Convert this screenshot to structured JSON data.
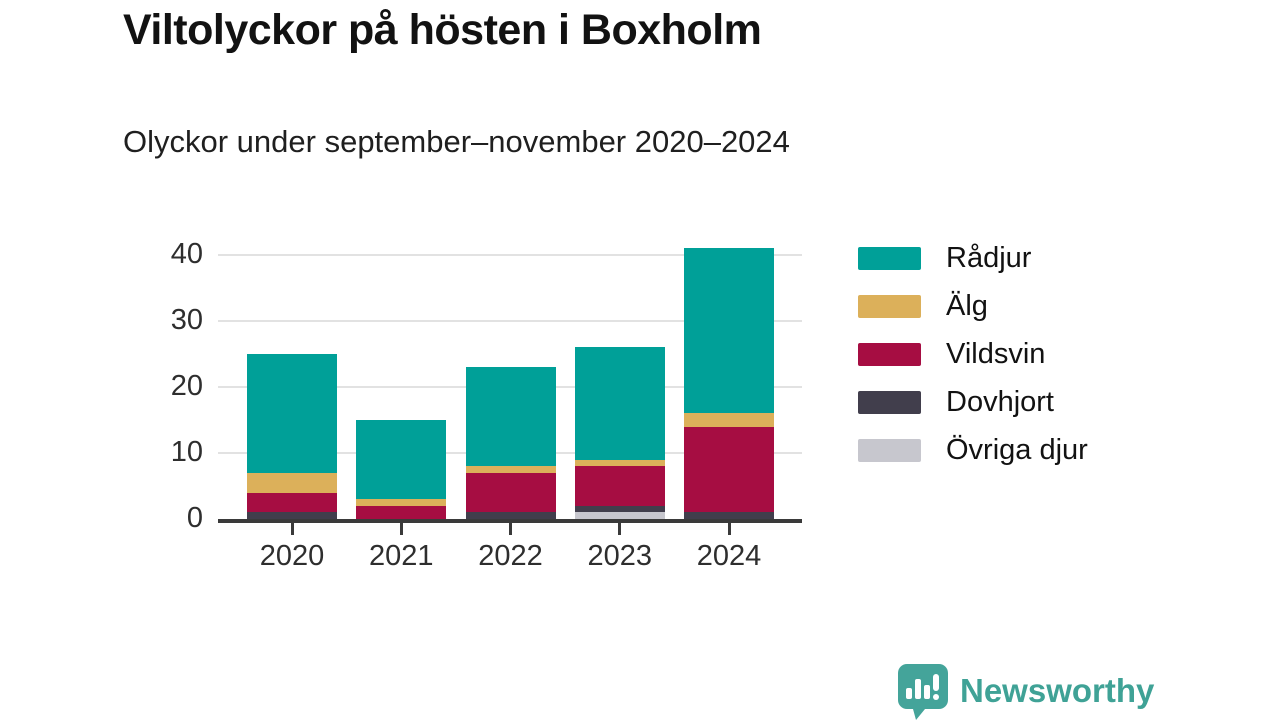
{
  "title": "Viltolyckor på hösten i Boxholm",
  "subtitle": "Olyckor under september–november 2020–2024",
  "chart_data": {
    "type": "bar",
    "stacked": true,
    "title": "Viltolyckor på hösten i Boxholm",
    "subtitle": "Olyckor under september–november 2020–2024",
    "categories": [
      "2020",
      "2021",
      "2022",
      "2023",
      "2024"
    ],
    "series": [
      {
        "name": "Rådjur",
        "color": "#00a098",
        "values": [
          18,
          12,
          15,
          17,
          25
        ]
      },
      {
        "name": "Älg",
        "color": "#dcb05a",
        "values": [
          3,
          1,
          1,
          1,
          2
        ]
      },
      {
        "name": "Vildsvin",
        "color": "#a60d42",
        "values": [
          3,
          2,
          6,
          6,
          13
        ]
      },
      {
        "name": "Dovhjort",
        "color": "#413e4c",
        "values": [
          1,
          0,
          1,
          1,
          1
        ]
      },
      {
        "name": "Övriga djur",
        "color": "#c7c7ce",
        "values": [
          0,
          0,
          0,
          1,
          0
        ]
      }
    ],
    "totals": [
      25,
      15,
      23,
      26,
      41
    ],
    "y_ticks": [
      0,
      10,
      20,
      30,
      40
    ],
    "ylim": [
      0,
      40
    ],
    "xlabel": "",
    "ylabel": "",
    "grid": true,
    "legend_position": "right",
    "stack_order_bottom_to_top": [
      "Övriga djur",
      "Dovhjort",
      "Vildsvin",
      "Älg",
      "Rådjur"
    ]
  },
  "footer": {
    "brand": "Newsworthy",
    "brand_color": "#3fa296",
    "icon": "speech-bubble-bar-chart-icon"
  }
}
